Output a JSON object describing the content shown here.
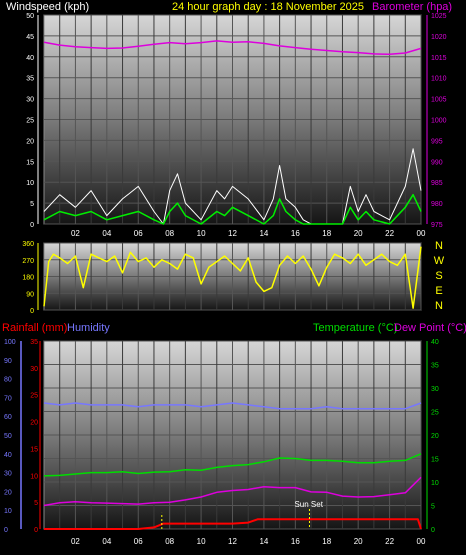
{
  "header": {
    "wind_label": "Windspeed (kph)",
    "title": "24 hour graph day : 18 November 2025",
    "baro_label": "Barometer (hpa)"
  },
  "lower_header": {
    "rain_label": "Rainfall (mm)",
    "humidity_label": "Humidity",
    "temp_label": "Temperature (°C)",
    "dew_label": "Dew Point (°C)"
  },
  "compass": [
    "N",
    "W",
    "S",
    "E",
    "N"
  ],
  "sunset_label": "Sun Set",
  "colors": {
    "wind_gust": "#ffffff",
    "wind_avg": "#00ee00",
    "barometer": "#dd00dd",
    "direction": "#ffff00",
    "rain": "#ff0000",
    "humidity": "#7777ff",
    "temperature": "#00dd00",
    "dewpoint": "#dd00dd",
    "sunset": "#ffff00"
  },
  "chart_data": [
    {
      "type": "line",
      "title": "24 hour graph day : 18 November 2025",
      "x_ticks": [
        "02",
        "04",
        "06",
        "08",
        "10",
        "12",
        "14",
        "16",
        "18",
        "20",
        "22",
        "00"
      ],
      "y_left": {
        "label": "Windspeed (kph)",
        "ticks": [
          0,
          5,
          10,
          15,
          20,
          25,
          30,
          35,
          40,
          45,
          50
        ],
        "range": [
          0,
          50
        ]
      },
      "y_right": {
        "label": "Barometer (hpa)",
        "ticks": [
          975,
          980,
          985,
          990,
          995,
          1000,
          1005,
          1010,
          1015,
          1020,
          1025
        ],
        "range": [
          975,
          1025
        ]
      },
      "series": [
        {
          "name": "Barometer (hpa)",
          "axis": "right",
          "x": [
            0,
            1,
            2,
            3,
            4,
            5,
            6,
            7,
            8,
            9,
            10,
            11,
            12,
            13,
            14,
            15,
            16,
            17,
            18,
            19,
            20,
            21,
            22,
            23,
            24
          ],
          "values": [
            1018.5,
            1017.8,
            1017.4,
            1017.2,
            1017.0,
            1017.1,
            1017.5,
            1018.0,
            1018.4,
            1018.1,
            1018.4,
            1018.8,
            1018.5,
            1018.6,
            1018.2,
            1017.6,
            1017.2,
            1016.8,
            1016.5,
            1016.2,
            1016.0,
            1015.7,
            1015.6,
            1015.9,
            1017.0
          ]
        },
        {
          "name": "Wind gust (kph)",
          "axis": "left",
          "x": [
            0,
            1,
            2,
            3,
            4,
            5,
            6,
            7,
            7.6,
            8,
            8.5,
            9,
            10,
            11,
            11.5,
            12,
            13,
            14,
            14.6,
            15,
            15.4,
            16,
            16.5,
            17,
            18,
            19,
            19.5,
            20,
            20.5,
            21,
            22,
            23,
            23.5,
            24
          ],
          "values": [
            3,
            7,
            4,
            8,
            2,
            6,
            9,
            3,
            0,
            8,
            12,
            5,
            1,
            8,
            6,
            9,
            6,
            1,
            6,
            14,
            6,
            4,
            1,
            0,
            0,
            0,
            9,
            3,
            7,
            3,
            1,
            9,
            18,
            8
          ]
        },
        {
          "name": "Wind average (kph)",
          "axis": "left",
          "x": [
            0,
            1,
            2,
            3,
            4,
            5,
            6,
            7,
            7.6,
            8,
            8.5,
            9,
            10,
            11,
            11.5,
            12,
            13,
            14,
            14.6,
            15,
            15.4,
            16,
            16.5,
            17,
            18,
            19,
            19.5,
            20,
            20.5,
            21,
            22,
            23,
            23.5,
            24
          ],
          "values": [
            1,
            3,
            2,
            3,
            1,
            2,
            3,
            1,
            0,
            3,
            5,
            2,
            0,
            3,
            2,
            4,
            2,
            0,
            2,
            6,
            3,
            1,
            0,
            0,
            0,
            0,
            4,
            1,
            3,
            1,
            0,
            4,
            7,
            3
          ]
        }
      ]
    },
    {
      "type": "line",
      "title": "",
      "y_left": {
        "ticks": [
          0,
          90,
          180,
          270,
          360
        ],
        "range": [
          0,
          360
        ]
      },
      "y_right_labels": [
        "N",
        "W",
        "S",
        "E",
        "N"
      ],
      "series": [
        {
          "name": "Wind direction (°)",
          "x": [
            0,
            0.3,
            0.6,
            1,
            1.5,
            2,
            2.5,
            3,
            3.5,
            4,
            4.5,
            5,
            5.5,
            6,
            6.5,
            7,
            7.5,
            8,
            8.5,
            9,
            9.5,
            10,
            10.5,
            11,
            11.5,
            12,
            12.5,
            13,
            13.5,
            14,
            14.5,
            15,
            15.5,
            16,
            16.5,
            17,
            17.5,
            18,
            18.5,
            19,
            19.5,
            20,
            20.5,
            21,
            21.5,
            22,
            22.5,
            23,
            23.5,
            24
          ],
          "values": [
            20,
            260,
            300,
            280,
            250,
            290,
            120,
            300,
            280,
            260,
            290,
            200,
            310,
            260,
            280,
            230,
            270,
            250,
            220,
            300,
            280,
            140,
            230,
            260,
            290,
            250,
            210,
            280,
            150,
            100,
            120,
            240,
            290,
            250,
            290,
            220,
            130,
            230,
            300,
            280,
            250,
            300,
            240,
            270,
            300,
            260,
            240,
            300,
            10,
            340
          ]
        }
      ]
    },
    {
      "type": "line",
      "title": "",
      "x_ticks": [
        "02",
        "04",
        "06",
        "08",
        "10",
        "12",
        "14",
        "16",
        "18",
        "20",
        "22",
        "00"
      ],
      "y_left": {
        "label": "Rainfall (mm)",
        "ticks": [
          0,
          5,
          10,
          15,
          20,
          25,
          30,
          35
        ],
        "range": [
          0,
          35
        ]
      },
      "y_left2": {
        "label": "Humidity",
        "ticks": [
          0,
          10,
          20,
          30,
          40,
          50,
          60,
          70,
          80,
          90,
          100
        ],
        "range": [
          0,
          100
        ]
      },
      "y_right": {
        "label": "Temperature (°C)",
        "ticks": [
          0,
          5,
          10,
          15,
          20,
          25,
          30,
          35,
          40
        ],
        "range": [
          0,
          40
        ]
      },
      "annotations": [
        "Sun Set"
      ],
      "series": [
        {
          "name": "Humidity",
          "axis": "left2",
          "x": [
            0,
            1,
            2,
            3,
            4,
            5,
            6,
            7,
            8,
            9,
            10,
            11,
            12,
            13,
            14,
            15,
            16,
            17,
            18,
            19,
            20,
            21,
            22,
            23,
            24
          ],
          "values": [
            67,
            66,
            67,
            66,
            66,
            66,
            65,
            66,
            66,
            66,
            65,
            66,
            67,
            66,
            65,
            64,
            64,
            64,
            65,
            64,
            64,
            64,
            64,
            64,
            67
          ]
        },
        {
          "name": "Temperature (°C)",
          "axis": "right",
          "x": [
            0,
            1,
            2,
            3,
            4,
            5,
            6,
            7,
            8,
            9,
            10,
            11,
            12,
            13,
            14,
            15,
            16,
            17,
            18,
            19,
            20,
            21,
            22,
            23,
            24
          ],
          "values": [
            11.3,
            11.4,
            11.7,
            12.0,
            12.0,
            12.2,
            11.8,
            12.1,
            12.2,
            12.6,
            12.5,
            13.1,
            13.5,
            13.7,
            14.3,
            15.1,
            15.0,
            14.6,
            14.6,
            14.4,
            14.1,
            14.1,
            14.4,
            14.6,
            16.0
          ]
        },
        {
          "name": "Dew Point (°C)",
          "axis": "right",
          "x": [
            0,
            1,
            2,
            3,
            4,
            5,
            6,
            7,
            8,
            9,
            10,
            11,
            12,
            13,
            14,
            15,
            16,
            17,
            18,
            19,
            20,
            21,
            22,
            23,
            24
          ],
          "values": [
            5.0,
            5.6,
            5.8,
            5.6,
            5.5,
            5.4,
            5.3,
            5.6,
            5.7,
            6.2,
            6.8,
            7.8,
            8.2,
            8.4,
            9.0,
            8.8,
            8.8,
            7.9,
            7.8,
            7.0,
            6.8,
            6.9,
            7.3,
            7.7,
            11.0
          ]
        },
        {
          "name": "Rainfall (mm)",
          "axis": "left",
          "x": [
            0,
            1,
            2,
            3,
            4,
            5,
            6,
            7,
            7.6,
            8,
            9,
            10,
            11,
            12,
            13,
            13.6,
            14,
            15,
            16,
            17,
            18,
            19,
            20,
            21,
            22,
            23,
            23.8,
            24
          ],
          "values": [
            0,
            0,
            0,
            0,
            0,
            0,
            0,
            0.3,
            1.0,
            1.0,
            1.0,
            1.0,
            1.0,
            1.0,
            1.2,
            1.8,
            1.8,
            1.8,
            1.8,
            1.8,
            1.8,
            1.8,
            1.8,
            1.8,
            1.8,
            1.8,
            1.8,
            0
          ]
        }
      ]
    }
  ]
}
